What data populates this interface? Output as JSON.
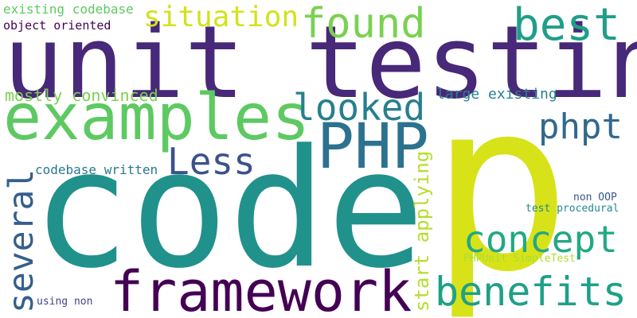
{
  "words": [
    {
      "id": "code",
      "text": "code",
      "color": "#21918c"
    },
    {
      "id": "p",
      "text": "p",
      "color": "#d8e219"
    },
    {
      "id": "unit-testing",
      "text": "unit testing",
      "color": "#482878"
    },
    {
      "id": "examples",
      "text": "examples",
      "color": "#5ec962"
    },
    {
      "id": "framework",
      "text": "framework",
      "color": "#440154"
    },
    {
      "id": "php",
      "text": "PHP",
      "color": "#2c728e"
    },
    {
      "id": "found",
      "text": "found",
      "color": "#7ad151"
    },
    {
      "id": "best",
      "text": "best",
      "color": "#1f9e89"
    },
    {
      "id": "situation",
      "text": "situation",
      "color": "#d2e21b"
    },
    {
      "id": "looked",
      "text": "looked",
      "color": "#277f8e"
    },
    {
      "id": "phpt",
      "text": "phpt",
      "color": "#31688e"
    },
    {
      "id": "less",
      "text": "Less",
      "color": "#3b528b"
    },
    {
      "id": "concept",
      "text": "concept",
      "color": "#22a884"
    },
    {
      "id": "benefits",
      "text": "benefits",
      "color": "#1fa088"
    },
    {
      "id": "several",
      "text": "several",
      "color": "#355f8d"
    },
    {
      "id": "start-applying",
      "text": "start applying",
      "color": "#b5de2b"
    },
    {
      "id": "existing-codebase",
      "text": "existing codebase",
      "color": "#5ec962"
    },
    {
      "id": "object-oriented",
      "text": "object oriented",
      "color": "#440154"
    },
    {
      "id": "mostly-convinced",
      "text": "mostly convinced",
      "color": "#7ad151"
    },
    {
      "id": "large-existing",
      "text": "large existing",
      "color": "#26828e"
    },
    {
      "id": "codebase-written",
      "text": "codebase written",
      "color": "#2a788e"
    },
    {
      "id": "non-oop",
      "text": "non OOP",
      "color": "#39568c"
    },
    {
      "id": "test-procedural",
      "text": "test procedural",
      "color": "#23898e"
    },
    {
      "id": "phpunit-simpletest",
      "text": "PHPUnit SimpleTest",
      "color": "#addc30"
    },
    {
      "id": "using-non",
      "text": "using non",
      "color": "#414487"
    }
  ]
}
